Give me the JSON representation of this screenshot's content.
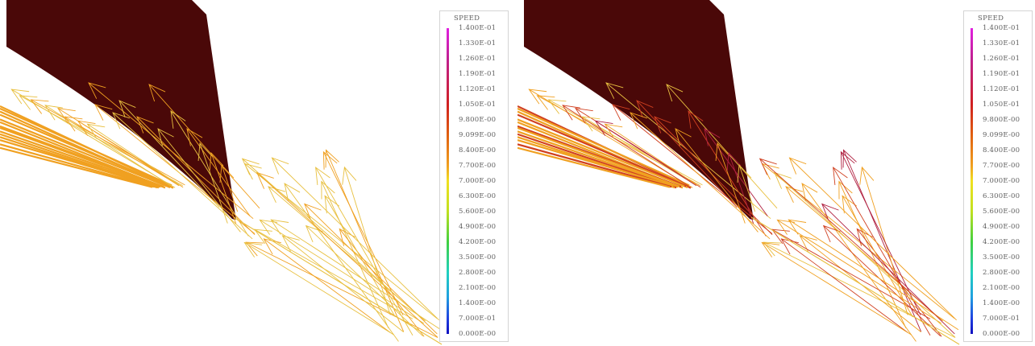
{
  "panels": [
    {
      "id": "left",
      "legend": {
        "title": "SPEED",
        "ticks": [
          "1.400E-01",
          "1.330E-01",
          "1.260E-01",
          "1.190E-01",
          "1.120E-01",
          "1.050E-01",
          "9.800E-00",
          "9.099E-00",
          "8.400E-00",
          "7.700E-00",
          "7.000E-00",
          "6.300E-00",
          "5.600E-00",
          "4.900E-00",
          "4.200E-00",
          "3.500E-00",
          "2.800E-00",
          "2.100E-00",
          "1.400E-00",
          "7.000E-01",
          "0.000E-00"
        ]
      }
    },
    {
      "id": "right",
      "legend": {
        "title": "SPEED",
        "ticks": [
          "1.400E-01",
          "1.330E-01",
          "1.260E-01",
          "1.190E-01",
          "1.120E-01",
          "1.050E-01",
          "9.800E-00",
          "9.099E-00",
          "8.400E-00",
          "7.700E-00",
          "7.000E-00",
          "6.300E-00",
          "5.600E-00",
          "4.900E-00",
          "4.200E-00",
          "3.500E-00",
          "2.800E-00",
          "2.100E-00",
          "1.400E-00",
          "7.000E-01",
          "0.000E-00"
        ]
      }
    }
  ],
  "colors": {
    "body": "#4a0808",
    "vector_low": "#e8c040",
    "vector_mid": "#f0a020",
    "vector_high": "#d04020",
    "vector_peak": "#b02040"
  }
}
